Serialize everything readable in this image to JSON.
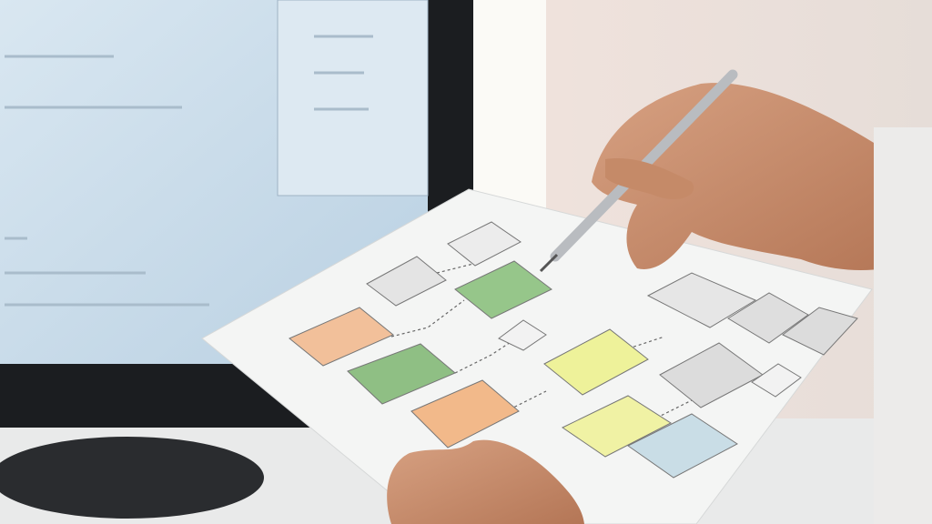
{
  "scene": {
    "description_tags": [
      "monitor",
      "paper-diagram",
      "hand",
      "pen"
    ],
    "colors": {
      "background": "#efe9e6",
      "monitor_frame": "#1b1d20",
      "screen": "#cfe0ec",
      "paper": "#f4f5f4",
      "skin": "#c98f6e",
      "pen": "#b9bcc0",
      "box_orange": "#f2c09a",
      "box_green": "#8fbf84",
      "box_yellow": "#eef29a",
      "box_blue": "#c9dde6",
      "box_gray": "#dcdcdc"
    }
  }
}
